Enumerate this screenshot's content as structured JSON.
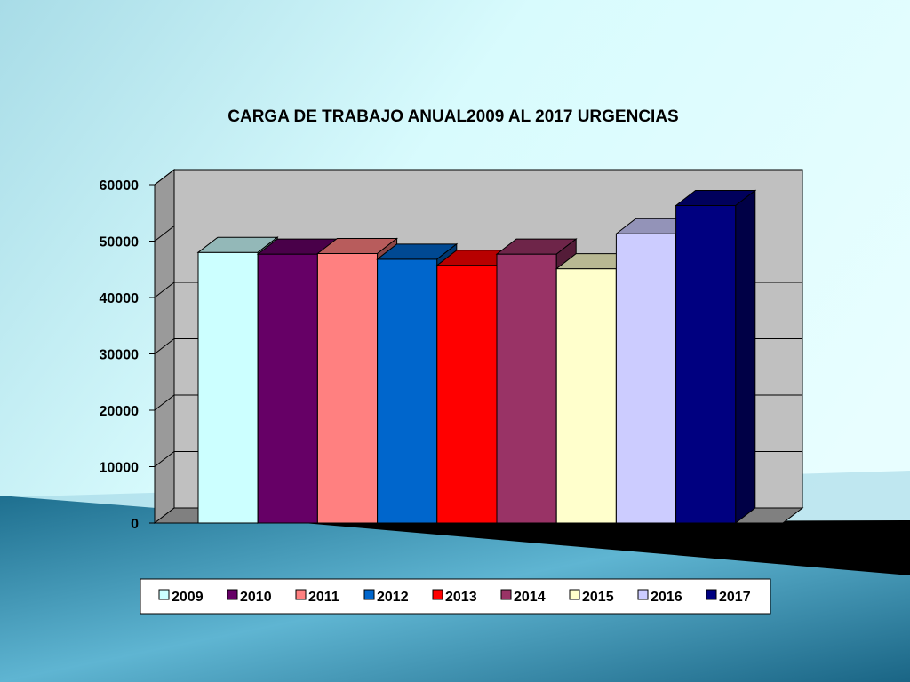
{
  "chart_data": {
    "type": "bar",
    "title": "CARGA DE TRABAJO  ANUAL2009 AL 2017 URGENCIAS",
    "xlabel": "",
    "ylabel": "",
    "ylim": [
      0,
      60000
    ],
    "y_ticks": [
      "0",
      "10000",
      "20000",
      "30000",
      "40000",
      "50000",
      "60000"
    ],
    "grid": true,
    "legend_position": "bottom",
    "series": [
      {
        "name": "2009",
        "value": 48000,
        "color": "#ccffff"
      },
      {
        "name": "2010",
        "value": 47700,
        "color": "#660066"
      },
      {
        "name": "2011",
        "value": 47800,
        "color": "#ff8080"
      },
      {
        "name": "2012",
        "value": 46800,
        "color": "#0066cc"
      },
      {
        "name": "2013",
        "value": 45700,
        "color": "#ff0000"
      },
      {
        "name": "2014",
        "value": 47700,
        "color": "#993366"
      },
      {
        "name": "2015",
        "value": 45100,
        "color": "#ffffcc"
      },
      {
        "name": "2016",
        "value": 51300,
        "color": "#ccccff"
      },
      {
        "name": "2017",
        "value": 56300,
        "color": "#000080"
      }
    ]
  }
}
